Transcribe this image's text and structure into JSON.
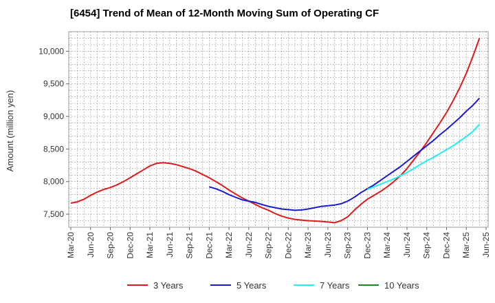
{
  "chart_data": {
    "type": "line",
    "title": "[6454]  Trend of Mean of 12-Month Moving Sum of Operating CF",
    "ylabel": "Amount (million yen)",
    "xlabel": "",
    "ylim": [
      7300,
      10300
    ],
    "yticks": [
      7500,
      8000,
      8500,
      9000,
      9500,
      10000
    ],
    "ytick_labels": [
      "7,500",
      "8,000",
      "8,500",
      "9,000",
      "9,500",
      "10,000"
    ],
    "x_index_range": [
      0,
      63
    ],
    "xtick_labels": [
      "Mar-20",
      "Jun-20",
      "Sep-20",
      "Dec-20",
      "Mar-21",
      "Jun-21",
      "Sep-21",
      "Dec-21",
      "Mar-22",
      "Jun-22",
      "Sep-22",
      "Dec-22",
      "Mar-23",
      "Jun-23",
      "Sep-23",
      "Dec-23",
      "Mar-24",
      "Jun-24",
      "Sep-24",
      "Dec-24",
      "Mar-25",
      "Jun-25"
    ],
    "grid": true,
    "legend_position": "bottom",
    "series": [
      {
        "name": "3 Years",
        "color": "#e0191b",
        "start_index": 0,
        "values": [
          7670,
          7690,
          7730,
          7790,
          7840,
          7880,
          7910,
          7950,
          8000,
          8060,
          8120,
          8180,
          8240,
          8280,
          8290,
          8280,
          8260,
          8230,
          8200,
          8160,
          8110,
          8060,
          8000,
          7940,
          7870,
          7810,
          7750,
          7700,
          7650,
          7600,
          7560,
          7510,
          7470,
          7440,
          7420,
          7410,
          7400,
          7395,
          7390,
          7380,
          7370,
          7400,
          7460,
          7560,
          7650,
          7730,
          7790,
          7850,
          7920,
          8000,
          8090,
          8200,
          8330,
          8460,
          8600,
          8750,
          8900,
          9060,
          9240,
          9440,
          9660,
          9920,
          10200
        ]
      },
      {
        "name": "5 Years",
        "color": "#1a1acc",
        "start_index": 21,
        "values": [
          7920,
          7890,
          7850,
          7800,
          7760,
          7720,
          7700,
          7680,
          7650,
          7620,
          7600,
          7580,
          7570,
          7560,
          7565,
          7580,
          7600,
          7620,
          7630,
          7640,
          7660,
          7700,
          7760,
          7830,
          7890,
          7950,
          8020,
          8090,
          8160,
          8230,
          8310,
          8390,
          8470,
          8550,
          8630,
          8720,
          8800,
          8890,
          8980,
          9080,
          9170,
          9280
        ]
      },
      {
        "name": "7 Years",
        "color": "#20f0f0",
        "start_index": 45,
        "values": [
          7880,
          7920,
          7960,
          8000,
          8040,
          8090,
          8140,
          8200,
          8260,
          8320,
          8370,
          8430,
          8490,
          8550,
          8620,
          8690,
          8770,
          8880
        ]
      },
      {
        "name": "10 Years",
        "color": "#1a8a1a",
        "start_index": 0,
        "values": []
      }
    ]
  }
}
